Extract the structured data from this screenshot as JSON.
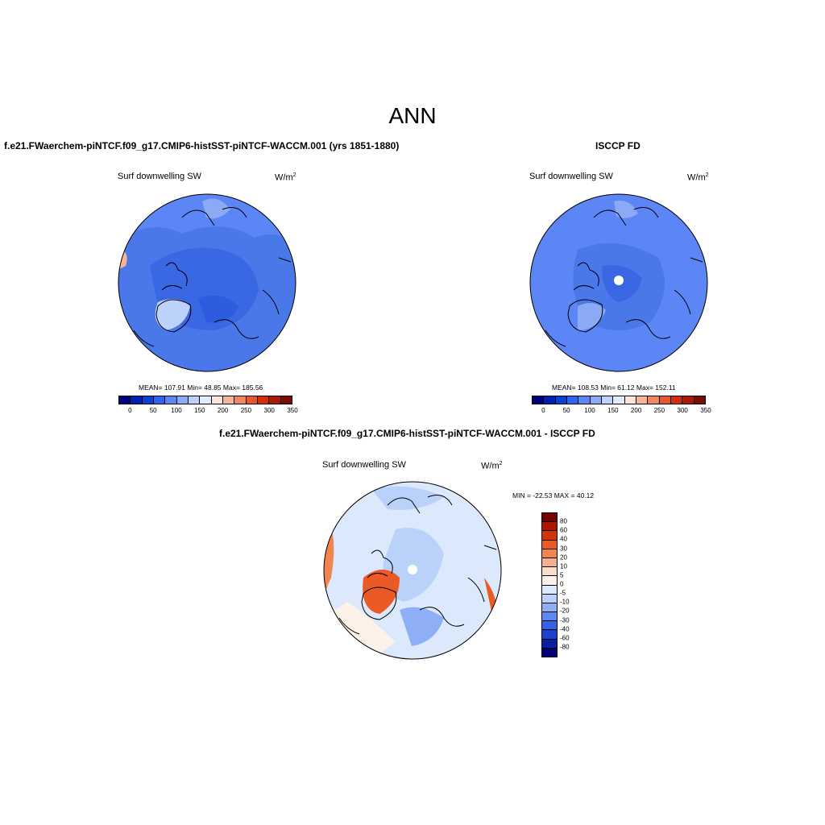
{
  "main_title": "ANN",
  "panels": [
    {
      "title": "f.e21.FWaerchem-piNTCF.f09_g17.CMIP6-histSST-piNTCF-WACCM.001 (yrs 1851-1880)",
      "variable": "Surf downwelling SW",
      "unit": "W/m",
      "unit_sup": "2",
      "stats": "MEAN= 107.91  Min=  48.85  Max= 185.56",
      "colorbar_ticks": [
        "0",
        "50",
        "100",
        "150",
        "200",
        "250",
        "300",
        "350"
      ]
    },
    {
      "title": "ISCCP FD",
      "variable": "Surf downwelling SW",
      "unit": "W/m",
      "unit_sup": "2",
      "stats": "MEAN= 108.53  Min=  61.12  Max= 152.11",
      "colorbar_ticks": [
        "0",
        "50",
        "100",
        "150",
        "200",
        "250",
        "300",
        "350"
      ]
    },
    {
      "title": "f.e21.FWaerchem-piNTCF.f09_g17.CMIP6-histSST-piNTCF-WACCM.001 - ISCCP FD",
      "variable": "Surf downwelling SW",
      "unit": "W/m",
      "unit_sup": "2",
      "stats": "MIN = -22.53 MAX =  40.12",
      "colorbar_ticks": [
        "80",
        "60",
        "40",
        "30",
        "20",
        "10",
        "5",
        "0",
        "-5",
        "-10",
        "-20",
        "-30",
        "-40",
        "-60",
        "-80"
      ]
    }
  ],
  "colors": {
    "abs_scale": [
      "#00007f",
      "#0020b0",
      "#0b3fd6",
      "#2f62ee",
      "#5c86f5",
      "#8aaaf6",
      "#bcd2fb",
      "#e2ecfd",
      "#fde6d6",
      "#f6b596",
      "#ef8760",
      "#e9562f",
      "#d52e0e",
      "#a71b08",
      "#7a0d03"
    ],
    "diff_scale": [
      "#7a0000",
      "#b01500",
      "#d3330a",
      "#eb5a25",
      "#f08551",
      "#f4b08f",
      "#fadcc8",
      "#fdf2ea",
      "#dce9fc",
      "#bad2fa",
      "#8eaff5",
      "#5e88f1",
      "#3363ea",
      "#1c40d0",
      "#0a209e",
      "#00007a"
    ],
    "map_main": "#4a78e8",
    "map_dark": "#2f5cdf",
    "map_light": "#7ea2f2",
    "map_pale": "#b9cff8"
  }
}
